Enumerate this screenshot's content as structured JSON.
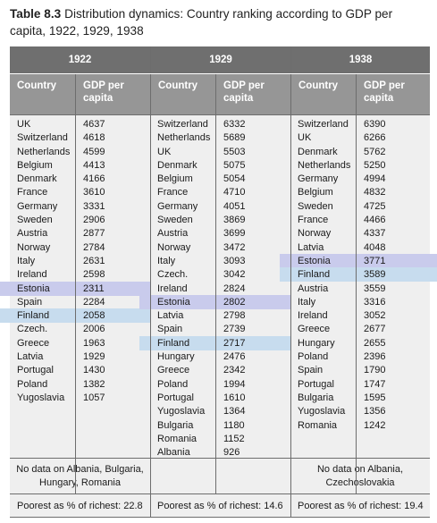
{
  "caption": {
    "number": "Table 8.3",
    "text": "Distribution dynamics: Country ranking according to GDP per capita, 1922, 1929, 1938"
  },
  "headers": {
    "country": "Country",
    "gdp": "GDP per capita"
  },
  "years": [
    {
      "year": "1922",
      "rows": [
        [
          "UK",
          "4637"
        ],
        [
          "Switzerland",
          "4618"
        ],
        [
          "Netherlands",
          "4599"
        ],
        [
          "Belgium",
          "4413"
        ],
        [
          "Denmark",
          "4166"
        ],
        [
          "France",
          "3610"
        ],
        [
          "Germany",
          "3331"
        ],
        [
          "Sweden",
          "2906"
        ],
        [
          "Austria",
          "2877"
        ],
        [
          "Norway",
          "2784"
        ],
        [
          "Italy",
          "2631"
        ],
        [
          "Ireland",
          "2598"
        ],
        [
          "Estonia",
          "2311"
        ],
        [
          "Spain",
          "2284"
        ],
        [
          "Finland",
          "2058"
        ],
        [
          "Czech.",
          "2006"
        ],
        [
          "Greece",
          "1963"
        ],
        [
          "Latvia",
          "1929"
        ],
        [
          "Portugal",
          "1430"
        ],
        [
          "Poland",
          "1382"
        ],
        [
          "Yugoslavia",
          "1057"
        ]
      ],
      "note": "No data on Albania, Bulgaria, Hungary, Romania",
      "poorest": "Poorest as % of richest: 22.8"
    },
    {
      "year": "1929",
      "rows": [
        [
          "Switzerland",
          "6332"
        ],
        [
          "Netherlands",
          "5689"
        ],
        [
          "UK",
          "5503"
        ],
        [
          "Denmark",
          "5075"
        ],
        [
          "Belgium",
          "5054"
        ],
        [
          "France",
          "4710"
        ],
        [
          "Germany",
          "4051"
        ],
        [
          "Sweden",
          "3869"
        ],
        [
          "Austria",
          "3699"
        ],
        [
          "Norway",
          "3472"
        ],
        [
          "Italy",
          "3093"
        ],
        [
          "Czech.",
          "3042"
        ],
        [
          "Ireland",
          "2824"
        ],
        [
          "Estonia",
          "2802"
        ],
        [
          "Latvia",
          "2798"
        ],
        [
          "Spain",
          "2739"
        ],
        [
          "Finland",
          "2717"
        ],
        [
          "Hungary",
          "2476"
        ],
        [
          "Greece",
          "2342"
        ],
        [
          "Poland",
          "1994"
        ],
        [
          "Portugal",
          "1610"
        ],
        [
          "Yugoslavia",
          "1364"
        ],
        [
          "Bulgaria",
          "1180"
        ],
        [
          "Romania",
          "1152"
        ],
        [
          "Albania",
          "926"
        ]
      ],
      "note": "",
      "poorest": "Poorest as % of richest: 14.6"
    },
    {
      "year": "1938",
      "rows": [
        [
          "Switzerland",
          "6390"
        ],
        [
          "UK",
          "6266"
        ],
        [
          "Denmark",
          "5762"
        ],
        [
          "Netherlands",
          "5250"
        ],
        [
          "Germany",
          "4994"
        ],
        [
          "Belgium",
          "4832"
        ],
        [
          "Sweden",
          "4725"
        ],
        [
          "France",
          "4466"
        ],
        [
          "Norway",
          "4337"
        ],
        [
          "Latvia",
          "4048"
        ],
        [
          "Estonia",
          "3771"
        ],
        [
          "Finland",
          "3589"
        ],
        [
          "Austria",
          "3559"
        ],
        [
          "Italy",
          "3316"
        ],
        [
          "Ireland",
          "3052"
        ],
        [
          "Greece",
          "2677"
        ],
        [
          "Hungary",
          "2655"
        ],
        [
          "Poland",
          "2396"
        ],
        [
          "Spain",
          "1790"
        ],
        [
          "Portugal",
          "1747"
        ],
        [
          "Bulgaria",
          "1595"
        ],
        [
          "Yugoslavia",
          "1356"
        ],
        [
          "Romania",
          "1242"
        ]
      ],
      "note": "No data on Albania, Czechoslovakia",
      "poorest": "Poorest as % of richest: 19.4"
    }
  ],
  "colors": {
    "estonia_highlight": "#c9cbec",
    "finland_highlight": "#c7dcee",
    "year_header": "#6f6f6f",
    "column_header": "#969696",
    "table_bg": "#efefef"
  }
}
